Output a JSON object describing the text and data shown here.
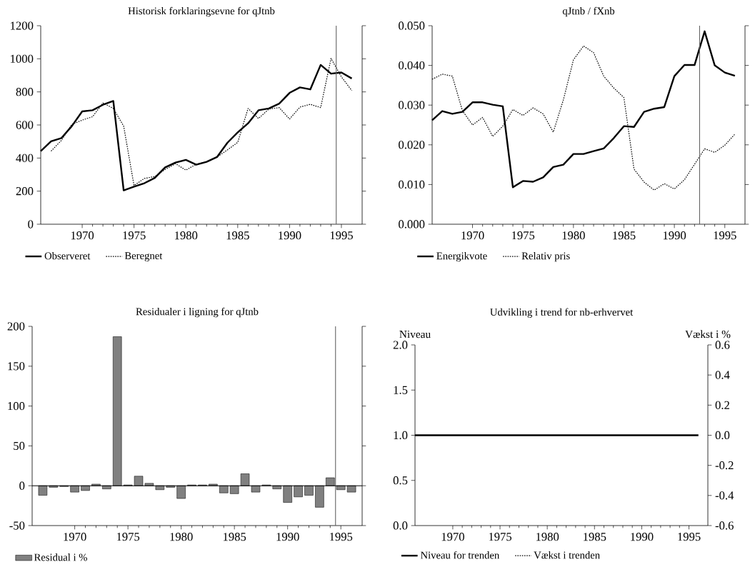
{
  "chart_data": [
    {
      "type": "line",
      "title": "Historisk forklaringsevne for qJtnb",
      "x": [
        1966,
        1967,
        1968,
        1969,
        1970,
        1971,
        1972,
        1973,
        1974,
        1975,
        1976,
        1977,
        1978,
        1979,
        1980,
        1981,
        1982,
        1983,
        1984,
        1985,
        1986,
        1987,
        1988,
        1989,
        1990,
        1991,
        1992,
        1993,
        1994,
        1995,
        1996
      ],
      "xlim": [
        1966,
        1997
      ],
      "xticks": [
        1970,
        1975,
        1980,
        1985,
        1990,
        1995
      ],
      "ylim": [
        0,
        1200
      ],
      "yticks": [
        0,
        200,
        400,
        600,
        800,
        1000,
        1200
      ],
      "series": [
        {
          "name": "Observeret",
          "color": "#000000",
          "line_style": "solid",
          "values": [
            442,
            501,
            521,
            593,
            682,
            689,
            722,
            745,
            205,
            227,
            248,
            280,
            344,
            373,
            389,
            360,
            377,
            406,
            492,
            555,
            610,
            689,
            700,
            729,
            794,
            827,
            815,
            963,
            910,
            917,
            881
          ]
        },
        {
          "name": "Beregnet",
          "color": "#000000",
          "line_style": "dotted",
          "values": [
            null,
            442,
            507,
            604,
            629,
            650,
            733,
            700,
            593,
            234,
            277,
            288,
            331,
            366,
            327,
            363,
            377,
            406,
            449,
            495,
            700,
            639,
            696,
            705,
            636,
            708,
            725,
            705,
            1002,
            891,
            808
          ]
        }
      ],
      "ref_lines": [
        {
          "axis": "x",
          "value": 1994.5,
          "color": "#606060"
        }
      ],
      "legend": "bottom"
    },
    {
      "type": "line",
      "title": "qJtnb / fXnb",
      "x": [
        1966,
        1967,
        1968,
        1969,
        1970,
        1971,
        1972,
        1973,
        1974,
        1975,
        1976,
        1977,
        1978,
        1979,
        1980,
        1981,
        1982,
        1983,
        1984,
        1985,
        1986,
        1987,
        1988,
        1989,
        1990,
        1991,
        1992,
        1993,
        1994,
        1995,
        1996
      ],
      "xlim": [
        1966,
        1997
      ],
      "xticks": [
        1970,
        1975,
        1980,
        1985,
        1990,
        1995
      ],
      "ylim": [
        0,
        0.05
      ],
      "yticks": [
        {
          "value": 0,
          "label": "0.000"
        },
        {
          "value": 0.01,
          "label": "0.010"
        },
        {
          "value": 0.02,
          "label": "0.020"
        },
        {
          "value": 0.03,
          "label": "0.030"
        },
        {
          "value": 0.04,
          "label": "0.040"
        },
        {
          "value": 0.05,
          "label": "0.050"
        }
      ],
      "series": [
        {
          "name": "Energikvote",
          "color": "#000000",
          "line_style": "solid",
          "values": [
            0.0262,
            0.0285,
            0.0278,
            0.0283,
            0.0307,
            0.0307,
            0.0301,
            0.0297,
            0.0093,
            0.0109,
            0.0107,
            0.0118,
            0.0144,
            0.015,
            0.0177,
            0.0177,
            0.0184,
            0.0191,
            0.0217,
            0.0247,
            0.0245,
            0.0283,
            0.0291,
            0.0295,
            0.0373,
            0.0401,
            0.0401,
            0.0486,
            0.04,
            0.0382,
            0.0374
          ]
        },
        {
          "name": "Relativ pris",
          "color": "#000000",
          "line_style": "dotted",
          "values": [
            0.0365,
            0.0378,
            0.0373,
            0.0286,
            0.025,
            0.0269,
            0.0221,
            0.0247,
            0.0289,
            0.0274,
            0.0293,
            0.0278,
            0.0232,
            0.0313,
            0.0414,
            0.0449,
            0.0432,
            0.0373,
            0.0343,
            0.0319,
            0.0139,
            0.0106,
            0.0086,
            0.0102,
            0.0089,
            0.0112,
            0.0151,
            0.019,
            0.0181,
            0.0199,
            0.0227
          ]
        }
      ],
      "ref_lines": [
        {
          "axis": "x",
          "value": 1992.5,
          "color": "#606060"
        }
      ],
      "legend": "bottom"
    },
    {
      "type": "bar",
      "title": "Residualer i ligning for qJtnb",
      "x": [
        1967,
        1968,
        1969,
        1970,
        1971,
        1972,
        1973,
        1974,
        1975,
        1976,
        1977,
        1978,
        1979,
        1980,
        1981,
        1982,
        1983,
        1984,
        1985,
        1986,
        1987,
        1988,
        1989,
        1990,
        1991,
        1992,
        1993,
        1994,
        1995,
        1996
      ],
      "xlim": [
        1966,
        1997
      ],
      "xticks": [
        1970,
        1975,
        1980,
        1985,
        1990,
        1995
      ],
      "ylim": [
        -50,
        200
      ],
      "yticks": [
        -50,
        0,
        50,
        100,
        150,
        200
      ],
      "series": [
        {
          "name": "Residual i %",
          "color": "#808080",
          "values": [
            -12,
            -2,
            -1,
            -8,
            -6,
            2,
            -4,
            187,
            1,
            12,
            3,
            -5,
            -2,
            -16,
            1,
            1,
            2,
            -9,
            -10,
            15,
            -8,
            1,
            -4,
            -21,
            -14,
            -12,
            -27,
            10,
            -5,
            -8
          ]
        }
      ],
      "ref_lines": [
        {
          "axis": "x",
          "value": 1994.5,
          "color": "#606060"
        },
        {
          "axis": "y",
          "value": 0,
          "color": "#000000"
        }
      ],
      "legend": "bottom"
    },
    {
      "type": "line",
      "title": "Udvikling i trend for nb-erhvervet",
      "ylabel": "Niveau",
      "y2label": "Vækst i %",
      "x": [
        1966,
        1967,
        1968,
        1969,
        1970,
        1971,
        1972,
        1973,
        1974,
        1975,
        1976,
        1977,
        1978,
        1979,
        1980,
        1981,
        1982,
        1983,
        1984,
        1985,
        1986,
        1987,
        1988,
        1989,
        1990,
        1991,
        1992,
        1993,
        1994,
        1995,
        1996
      ],
      "xlim": [
        1966,
        1997
      ],
      "xticks": [
        1970,
        1975,
        1980,
        1985,
        1990,
        1995
      ],
      "ylim": [
        0,
        2
      ],
      "yticks": [
        {
          "value": 0,
          "label": "0.0"
        },
        {
          "value": 0.5,
          "label": "0.5"
        },
        {
          "value": 1,
          "label": "1.0"
        },
        {
          "value": 1.5,
          "label": "1.5"
        },
        {
          "value": 2,
          "label": "2.0"
        }
      ],
      "y2lim": [
        -0.6,
        0.6
      ],
      "y2ticks": [
        -0.6,
        -0.4,
        -0.2,
        {
          "value": 0,
          "label": "0.0"
        },
        0.2,
        0.4,
        0.6
      ],
      "series": [
        {
          "name": "Niveau for trenden",
          "color": "#000000",
          "line_style": "solid",
          "values": [
            1,
            1,
            1,
            1,
            1,
            1,
            1,
            1,
            1,
            1,
            1,
            1,
            1,
            1,
            1,
            1,
            1,
            1,
            1,
            1,
            1,
            1,
            1,
            1,
            1,
            1,
            1,
            1,
            1,
            1,
            1
          ]
        },
        {
          "name": "Vækst i trenden",
          "color": "#000000",
          "line_style": "dotted",
          "axis": "y2",
          "values": [
            null,
            null,
            null,
            null,
            null,
            null,
            null,
            null,
            null,
            null,
            null,
            null,
            null,
            null,
            null,
            null,
            null,
            null,
            null,
            null,
            null,
            null,
            null,
            null,
            null,
            null,
            null,
            null,
            null,
            null,
            null
          ]
        }
      ],
      "legend": "bottom"
    }
  ]
}
